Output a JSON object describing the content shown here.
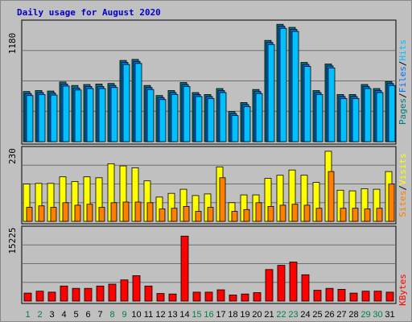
{
  "title": "Daily usage for August 2020",
  "colors": {
    "pages": "#007b7b",
    "files": "#0070ff",
    "hits": "#00c0ff",
    "visits": "#ffff00",
    "sites": "#ff8000",
    "kbytes": "#ff0000",
    "weekend": "#008040",
    "weekday": "#000000",
    "slash": "#000000",
    "panel": "#c0c0c0",
    "grid": "#707070"
  },
  "axis": {
    "top_max_label": "1180",
    "mid_max_label": "230",
    "bot_max_label": "15225"
  },
  "legend": {
    "pages": "Pages",
    "files": "Files",
    "hits": "Hits",
    "visits": "Visits",
    "sites": "Sites",
    "kbytes": "KBytes",
    "slash": "/"
  },
  "chart_data": {
    "type": "bar",
    "title": "Daily usage for August 2020",
    "categories": [
      "1",
      "2",
      "3",
      "4",
      "5",
      "6",
      "7",
      "8",
      "9",
      "10",
      "11",
      "12",
      "13",
      "14",
      "15",
      "16",
      "17",
      "18",
      "19",
      "20",
      "21",
      "22",
      "23",
      "24",
      "25",
      "26",
      "27",
      "28",
      "29",
      "30",
      "31"
    ],
    "weekend_days": [
      "1",
      "2",
      "8",
      "9",
      "15",
      "16",
      "22",
      "23",
      "29",
      "30"
    ],
    "panels": [
      {
        "name": "hits-files-pages",
        "ymax": 1180,
        "series": [
          {
            "name": "Pages",
            "values": [
              500,
              510,
              505,
              595,
              560,
              570,
              575,
              580,
              810,
              820,
              560,
              460,
              510,
              590,
              490,
              470,
              530,
              300,
              390,
              520,
              1010,
              1170,
              1140,
              790,
              510,
              775,
              470,
              470,
              570,
              530,
              600
            ]
          },
          {
            "name": "Files",
            "values": [
              480,
              490,
              485,
              575,
              535,
              550,
              550,
              560,
              790,
              800,
              540,
              440,
              490,
              570,
              470,
              450,
              510,
              280,
              370,
              500,
              990,
              1150,
              1120,
              770,
              490,
              755,
              450,
              450,
              550,
              510,
              580
            ]
          },
          {
            "name": "Hits",
            "values": [
              460,
              470,
              465,
              555,
              515,
              530,
              530,
              540,
              770,
              780,
              520,
              420,
              470,
              550,
              450,
              430,
              490,
              260,
              350,
              480,
              970,
              1130,
              1100,
              750,
              470,
              735,
              430,
              430,
              530,
              490,
              560
            ]
          }
        ]
      },
      {
        "name": "visits-sites",
        "ymax": 230,
        "series": [
          {
            "name": "Visits",
            "values": [
              120,
              122,
              122,
              143,
              128,
              143,
              140,
              185,
              178,
              172,
              130,
              78,
              90,
              103,
              83,
              88,
              175,
              60,
              85,
              85,
              138,
              148,
              165,
              148,
              125,
              225,
              100,
              98,
              105,
              103,
              160
            ]
          },
          {
            "name": "Sites",
            "values": [
              45,
              50,
              45,
              60,
              52,
              55,
              45,
              60,
              62,
              62,
              60,
              40,
              42,
              48,
              32,
              45,
              140,
              32,
              38,
              60,
              48,
              52,
              55,
              52,
              42,
              160,
              42,
              42,
              40,
              42,
              120
            ]
          }
        ]
      },
      {
        "name": "kbytes",
        "ymax": 15225,
        "series": [
          {
            "name": "KBytes",
            "values": [
              1700,
              2100,
              1900,
              3200,
              2700,
              2700,
              3200,
              3600,
              4500,
              5400,
              3200,
              1600,
              1500,
              13800,
              1900,
              1900,
              2400,
              1300,
              1500,
              1800,
              6700,
              7600,
              8300,
              5600,
              2300,
              2700,
              2500,
              1700,
              2100,
              2100,
              1900
            ]
          }
        ]
      }
    ]
  }
}
